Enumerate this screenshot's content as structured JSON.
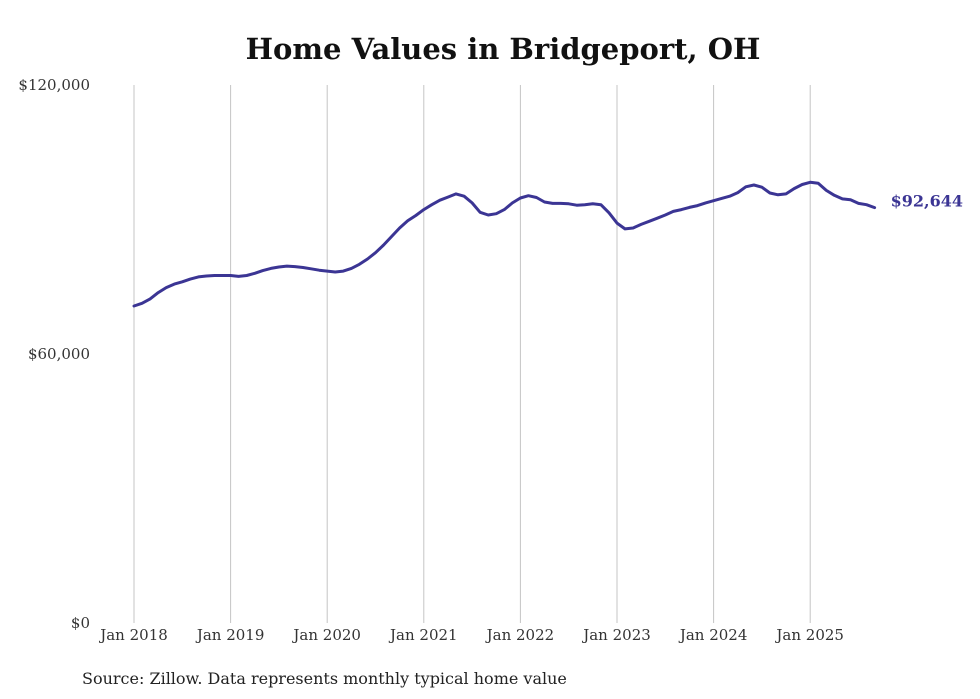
{
  "chart_data": {
    "type": "line",
    "title": "Home Values in Bridgeport, OH",
    "xlabel": "",
    "ylabel": "",
    "ylim": [
      0,
      120000
    ],
    "yticks": [
      {
        "value": 0,
        "label": "$0"
      },
      {
        "value": 60000,
        "label": "$60,000"
      },
      {
        "value": 120000,
        "label": "$120,000"
      }
    ],
    "xlim": [
      2018.0,
      2025.83
    ],
    "xticks": [
      {
        "value": 2018,
        "label": "Jan 2018"
      },
      {
        "value": 2019,
        "label": "Jan 2019"
      },
      {
        "value": 2020,
        "label": "Jan 2020"
      },
      {
        "value": 2021,
        "label": "Jan 2021"
      },
      {
        "value": 2022,
        "label": "Jan 2022"
      },
      {
        "value": 2023,
        "label": "Jan 2023"
      },
      {
        "value": 2024,
        "label": "Jan 2024"
      },
      {
        "value": 2025,
        "label": "Jan 2025"
      }
    ],
    "grid": "vertical",
    "line_color": "#3b3594",
    "end_label": "$92,644",
    "series": [
      {
        "name": "Typical home value",
        "x": [
          2018.0,
          2018.083,
          2018.167,
          2018.25,
          2018.333,
          2018.417,
          2018.5,
          2018.583,
          2018.667,
          2018.75,
          2018.833,
          2018.917,
          2019.0,
          2019.083,
          2019.167,
          2019.25,
          2019.333,
          2019.417,
          2019.5,
          2019.583,
          2019.667,
          2019.75,
          2019.833,
          2019.917,
          2020.0,
          2020.083,
          2020.167,
          2020.25,
          2020.333,
          2020.417,
          2020.5,
          2020.583,
          2020.667,
          2020.75,
          2020.833,
          2020.917,
          2021.0,
          2021.083,
          2021.167,
          2021.25,
          2021.333,
          2021.417,
          2021.5,
          2021.583,
          2021.667,
          2021.75,
          2021.833,
          2021.917,
          2022.0,
          2022.083,
          2022.167,
          2022.25,
          2022.333,
          2022.417,
          2022.5,
          2022.583,
          2022.667,
          2022.75,
          2022.833,
          2022.917,
          2023.0,
          2023.083,
          2023.167,
          2023.25,
          2023.333,
          2023.417,
          2023.5,
          2023.583,
          2023.667,
          2023.75,
          2023.833,
          2023.917,
          2024.0,
          2024.083,
          2024.167,
          2024.25,
          2024.333,
          2024.417,
          2024.5,
          2024.583,
          2024.667,
          2024.75,
          2024.833,
          2024.917,
          2025.0,
          2025.083,
          2025.167,
          2025.25,
          2025.333,
          2025.417,
          2025.5,
          2025.583,
          2025.667
        ],
        "values": [
          70700,
          71300,
          72300,
          73700,
          74800,
          75600,
          76100,
          76700,
          77200,
          77400,
          77500,
          77500,
          77500,
          77300,
          77500,
          78000,
          78600,
          79100,
          79400,
          79600,
          79500,
          79300,
          79000,
          78700,
          78500,
          78300,
          78500,
          79100,
          80000,
          81200,
          82600,
          84300,
          86200,
          88100,
          89700,
          90900,
          92200,
          93300,
          94300,
          95000,
          95700,
          95200,
          93700,
          91600,
          91000,
          91300,
          92200,
          93700,
          94800,
          95300,
          94900,
          93900,
          93600,
          93600,
          93500,
          93200,
          93300,
          93500,
          93300,
          91500,
          89200,
          87900,
          88100,
          88900,
          89600,
          90300,
          91000,
          91800,
          92200,
          92700,
          93100,
          93700,
          94200,
          94700,
          95200,
          96000,
          97300,
          97700,
          97200,
          95900,
          95500,
          95700,
          96900,
          97800,
          98300,
          98100,
          96500,
          95400,
          94600,
          94400,
          93600,
          93300,
          92644
        ]
      }
    ]
  },
  "source": "Source: Zillow. Data represents monthly typical home value"
}
